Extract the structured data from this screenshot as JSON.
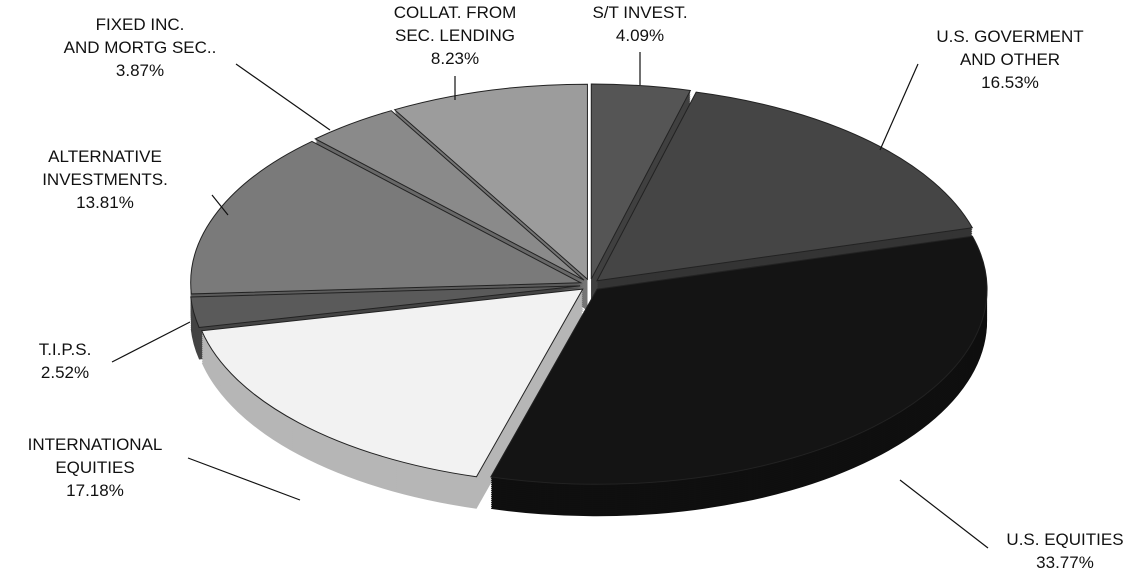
{
  "chart_data": {
    "type": "pie",
    "categories": [
      "S/T INVEST.",
      "U.S. GOVERMENT\nAND OTHER",
      "U.S. EQUITIES",
      "INTERNATIONAL\nEQUITIES",
      "T.I.P.S.",
      "ALTERNATIVE\nINVESTMENTS.",
      "FIXED INC.\nAND MORTG SEC..",
      "COLLAT. FROM\nSEC. LENDING"
    ],
    "values": [
      4.09,
      16.53,
      33.77,
      17.18,
      2.52,
      13.81,
      3.87,
      8.23
    ],
    "value_labels": [
      "4.09%",
      "16.53%",
      "33.77%",
      "17.18%",
      "2.52%",
      "13.81%",
      "3.87%",
      "8.23%"
    ],
    "colors": [
      "#555555",
      "#454545",
      "#141414",
      "#f2f2f2",
      "#5a5a5a",
      "#7a7a7a",
      "#8a8a8a",
      "#9c9c9c"
    ]
  }
}
